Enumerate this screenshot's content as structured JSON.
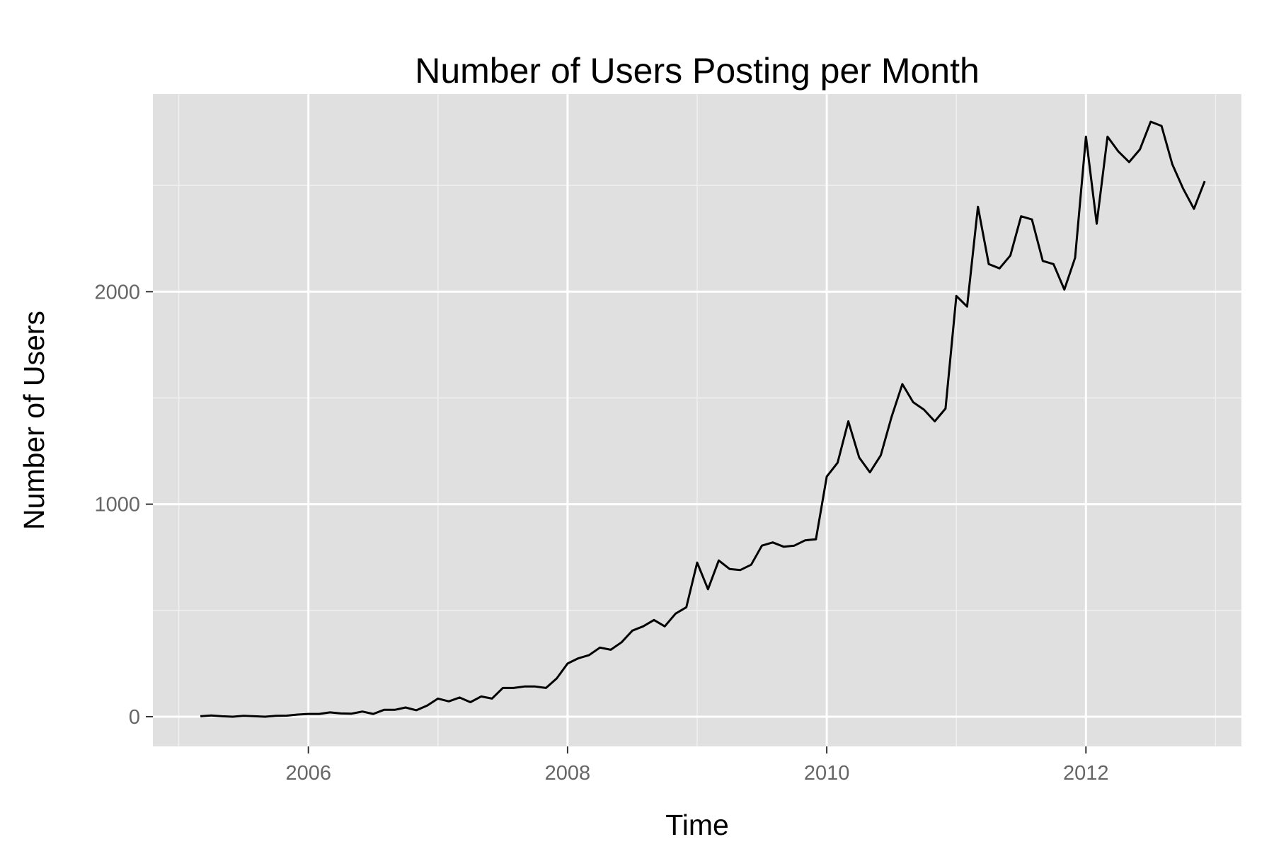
{
  "chart_data": {
    "type": "line",
    "title": "Number of Users Posting per Month",
    "xlabel": "Time",
    "ylabel": "Number of Users",
    "xlim": [
      2004.8,
      2013.2
    ],
    "ylim": [
      -140,
      2930
    ],
    "x_ticks": [
      {
        "value": 2006,
        "label": "2006"
      },
      {
        "value": 2008,
        "label": "2008"
      },
      {
        "value": 2010,
        "label": "2010"
      },
      {
        "value": 2012,
        "label": "2012"
      }
    ],
    "y_ticks": [
      {
        "value": 0,
        "label": "0"
      },
      {
        "value": 1000,
        "label": "1000"
      },
      {
        "value": 2000,
        "label": "2000"
      }
    ],
    "grid": true,
    "legend": "none",
    "colors": {
      "panel": "#e0e0e0",
      "grid_major": "#ffffff",
      "grid_minor": "#f0f0f0",
      "line": "#000000",
      "tick_text": "#666666",
      "tick_mark": "#333333"
    },
    "series": [
      {
        "x": [
          "2005-03",
          "2005-04",
          "2005-05",
          "2005-06",
          "2005-07",
          "2005-08",
          "2005-09",
          "2005-10",
          "2005-11",
          "2005-12",
          "2006-01",
          "2006-02",
          "2006-03",
          "2006-04",
          "2006-05",
          "2006-06",
          "2006-07",
          "2006-08",
          "2006-09",
          "2006-10",
          "2006-11",
          "2006-12",
          "2007-01",
          "2007-02",
          "2007-03",
          "2007-04",
          "2007-05",
          "2007-06",
          "2007-07",
          "2007-08",
          "2007-09",
          "2007-10",
          "2007-11",
          "2007-12",
          "2008-01",
          "2008-02",
          "2008-03",
          "2008-04",
          "2008-05",
          "2008-06",
          "2008-07",
          "2008-08",
          "2008-09",
          "2008-10",
          "2008-11",
          "2008-12",
          "2009-01",
          "2009-02",
          "2009-03",
          "2009-04",
          "2009-05",
          "2009-06",
          "2009-07",
          "2009-08",
          "2009-09",
          "2009-10",
          "2009-11",
          "2009-12",
          "2010-01",
          "2010-02",
          "2010-03",
          "2010-04",
          "2010-05",
          "2010-06",
          "2010-07",
          "2010-08",
          "2010-09",
          "2010-10",
          "2010-11",
          "2010-12",
          "2011-01",
          "2011-02",
          "2011-03",
          "2011-04",
          "2011-05",
          "2011-06",
          "2011-07",
          "2011-08",
          "2011-09",
          "2011-10",
          "2011-11",
          "2011-12",
          "2012-01",
          "2012-02",
          "2012-03",
          "2012-04",
          "2012-05",
          "2012-06",
          "2012-07",
          "2012-08",
          "2012-09",
          "2012-10",
          "2012-11",
          "2012-12"
        ],
        "y": [
          2,
          6,
          2,
          0,
          4,
          2,
          0,
          4,
          5,
          10,
          13,
          13,
          20,
          15,
          14,
          24,
          13,
          32,
          32,
          43,
          30,
          52,
          85,
          72,
          90,
          68,
          95,
          85,
          135,
          135,
          142,
          142,
          135,
          180,
          250,
          275,
          290,
          325,
          315,
          350,
          405,
          425,
          455,
          425,
          485,
          515,
          725,
          600,
          735,
          695,
          690,
          715,
          805,
          820,
          800,
          805,
          830,
          835,
          1130,
          1195,
          1390,
          1220,
          1150,
          1230,
          1410,
          1565,
          1480,
          1445,
          1390,
          1450,
          1980,
          1930,
          2400,
          2130,
          2110,
          2170,
          2355,
          2340,
          2145,
          2130,
          2010,
          2160,
          2730,
          2320,
          2730,
          2660,
          2610,
          2670,
          2800,
          2780,
          2600,
          2485,
          2390,
          2520
        ]
      }
    ]
  }
}
